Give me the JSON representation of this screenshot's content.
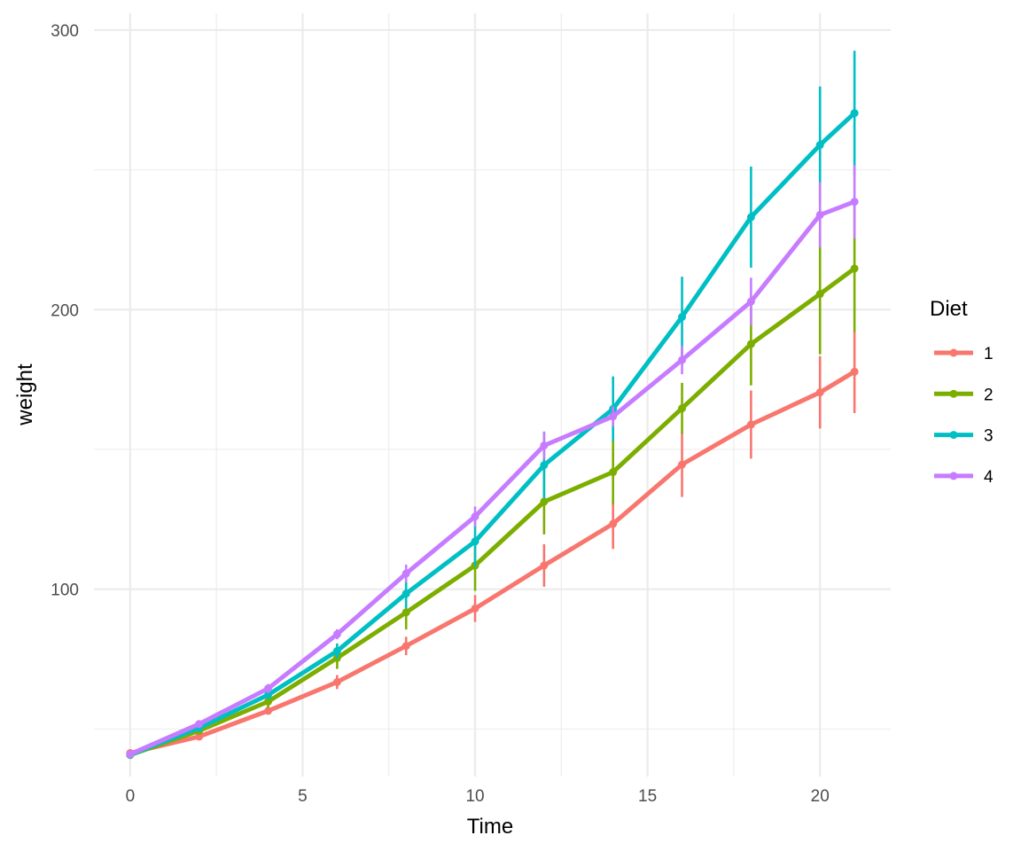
{
  "chart_data": {
    "type": "line",
    "title": "",
    "xlabel": "Time",
    "ylabel": "weight",
    "x": [
      0,
      2,
      4,
      6,
      8,
      10,
      12,
      14,
      16,
      18,
      20,
      21
    ],
    "xlim": [
      -1.05,
      22.05
    ],
    "ylim": [
      33,
      306
    ],
    "x_ticks": [
      0,
      5,
      10,
      15,
      20
    ],
    "x_tick_labels": [
      "0",
      "5",
      "10",
      "15",
      "20"
    ],
    "x_minor_ticks": [
      2.5,
      7.5,
      12.5,
      17.5
    ],
    "y_ticks": [
      100,
      200,
      300
    ],
    "y_tick_labels": [
      "100",
      "200",
      "300"
    ],
    "y_minor_ticks": [
      50,
      150,
      250
    ],
    "grid": true,
    "legend": {
      "title": "Diet",
      "placement": "right"
    },
    "series": [
      {
        "name": "1",
        "color": "#F8766D",
        "values": [
          41.4,
          47.3,
          56.5,
          66.8,
          79.7,
          93.1,
          108.5,
          123.4,
          144.6,
          158.9,
          170.4,
          177.8
        ],
        "error_low": [
          40.9,
          46.5,
          55.2,
          64.3,
          76.4,
          88.3,
          100.9,
          114.4,
          133.0,
          146.7,
          157.5,
          163.0
        ],
        "error_high": [
          41.9,
          48.1,
          57.8,
          69.3,
          83.0,
          97.9,
          116.1,
          132.4,
          156.2,
          171.1,
          183.3,
          192.6
        ]
      },
      {
        "name": "2",
        "color": "#7CAE00",
        "values": [
          40.7,
          49.4,
          59.8,
          75.4,
          91.7,
          108.5,
          131.3,
          141.9,
          164.7,
          187.7,
          205.6,
          214.7
        ],
        "error_low": [
          40.3,
          48.2,
          57.5,
          71.5,
          85.6,
          99.4,
          119.6,
          130.3,
          155.6,
          172.9,
          184.1,
          192.0
        ],
        "error_high": [
          41.1,
          50.6,
          62.1,
          79.3,
          97.8,
          117.6,
          143.0,
          153.5,
          173.8,
          202.5,
          227.1,
          237.4
        ]
      },
      {
        "name": "3",
        "color": "#00BFC4",
        "values": [
          40.8,
          50.4,
          62.2,
          77.9,
          98.4,
          117.1,
          144.4,
          164.5,
          197.4,
          233.1,
          258.9,
          270.3
        ],
        "error_low": [
          40.5,
          49.5,
          60.6,
          75.2,
          93.1,
          108.0,
          132.5,
          152.9,
          183.0,
          215.0,
          238.0,
          248.0
        ],
        "error_high": [
          41.1,
          51.3,
          63.8,
          80.6,
          103.7,
          126.2,
          156.3,
          176.1,
          211.8,
          251.2,
          279.8,
          292.6
        ]
      },
      {
        "name": "4",
        "color": "#C77CFF",
        "values": [
          41.0,
          51.8,
          64.5,
          83.9,
          105.6,
          126.0,
          151.4,
          161.8,
          182.0,
          202.9,
          233.9,
          238.6
        ],
        "error_low": [
          40.7,
          51.1,
          62.9,
          82.1,
          102.4,
          122.4,
          146.4,
          158.2,
          176.9,
          194.4,
          222.2,
          225.5
        ],
        "error_high": [
          41.3,
          52.5,
          66.1,
          85.7,
          108.8,
          129.6,
          156.4,
          165.4,
          187.1,
          211.4,
          245.6,
          251.7
        ]
      }
    ]
  }
}
